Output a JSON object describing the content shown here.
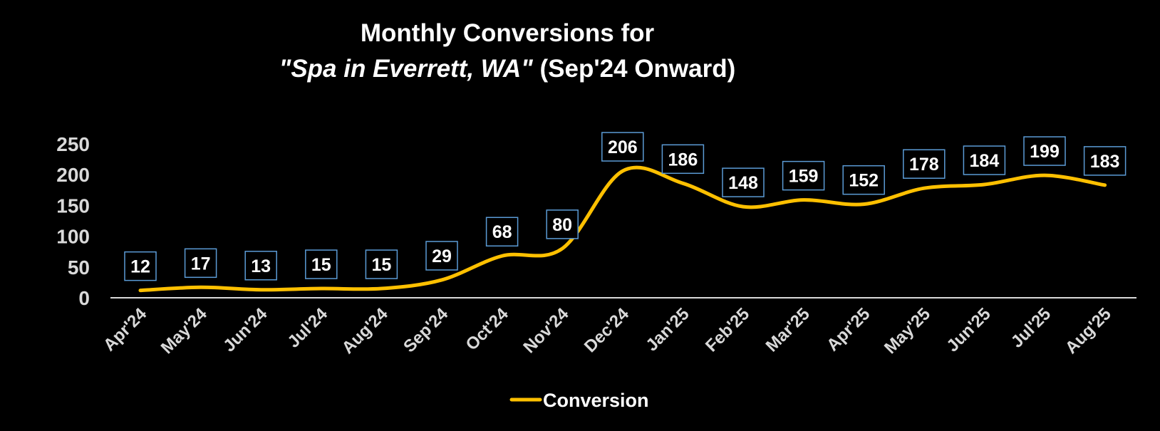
{
  "chart_data": {
    "type": "line",
    "title_line1": "Monthly Conversions for",
    "title_line2_italic": "\"Spa in Everrett, WA\"",
    "title_line2_rest": " (Sep'24 Onward)",
    "xlabel": "",
    "ylabel": "",
    "categories": [
      "Apr'24",
      "May'24",
      "Jun'24",
      "Jul'24",
      "Aug'24",
      "Sep'24",
      "Oct'24",
      "Nov'24",
      "Dec'24",
      "Jan'25",
      "Feb'25",
      "Mar'25",
      "Apr'25",
      "May'25",
      "Jun'25",
      "Jul'25",
      "Aug'25"
    ],
    "series": [
      {
        "name": "Conversion",
        "values": [
          12,
          17,
          13,
          15,
          15,
          29,
          68,
          80,
          206,
          186,
          148,
          159,
          152,
          178,
          184,
          199,
          183
        ]
      }
    ],
    "ylim": [
      0,
      250
    ],
    "yticks": [
      0,
      50,
      100,
      150,
      200,
      250
    ],
    "grid": false,
    "legend": "bottom",
    "line_color": "#FFC000",
    "label_border_color": "#5B9BD5",
    "background": "#000000",
    "text_color": "#FFFFFF"
  }
}
